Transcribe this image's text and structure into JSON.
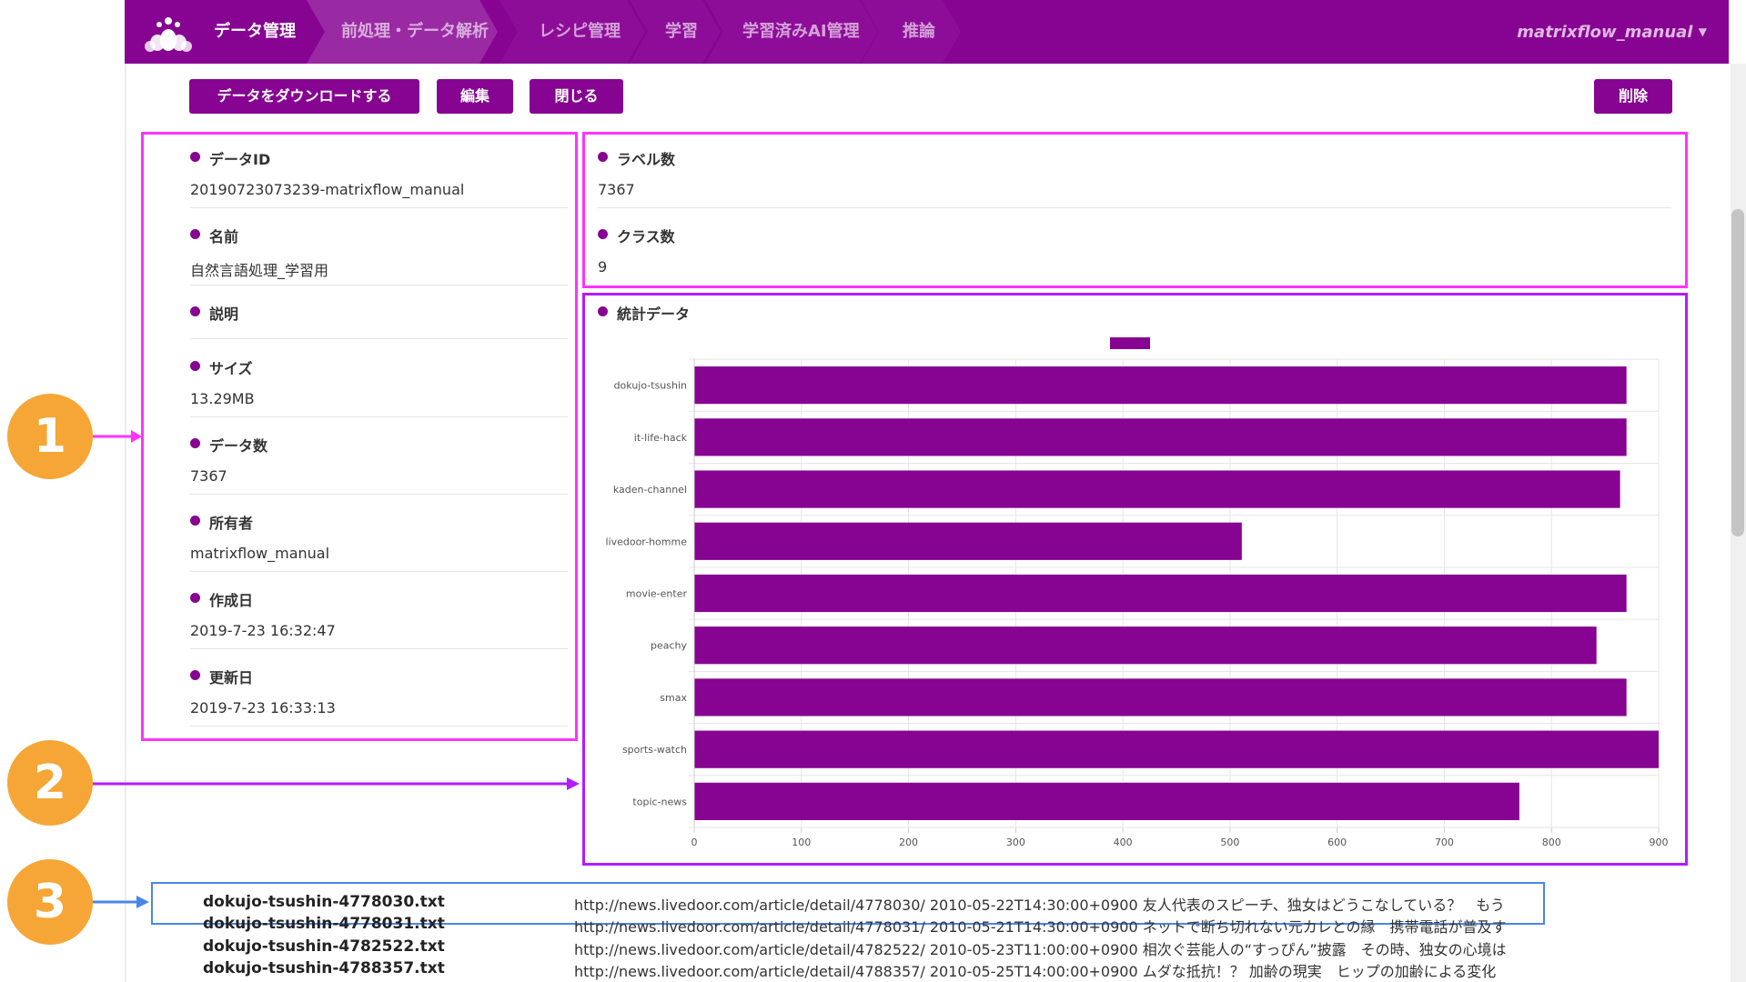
{
  "colors": {
    "brand": "#860491",
    "frame_magenta": "#ff33ff",
    "frame_violet": "#b31bff",
    "frame_blue": "#4a86e8",
    "badge": "#f6a636"
  },
  "logo": {
    "icon": "lotus-logo-icon"
  },
  "breadcrumbs": [
    "データ管理",
    "前処理・データ解析",
    "レシピ管理",
    "学習",
    "学習済みAI管理",
    "推論"
  ],
  "user": {
    "name": "matrixflow_manual"
  },
  "actions": {
    "download": "データをダウンロードする",
    "edit": "編集",
    "close": "閉じる",
    "delete": "削除"
  },
  "info": {
    "data_id": {
      "label": "データID",
      "value": "20190723073239-matrixflow_manual"
    },
    "name": {
      "label": "名前",
      "value": "自然言語処理_学習用"
    },
    "description": {
      "label": "説明",
      "value": ""
    },
    "size": {
      "label": "サイズ",
      "value": "13.29MB"
    },
    "count": {
      "label": "データ数",
      "value": "7367"
    },
    "owner": {
      "label": "所有者",
      "value": "matrixflow_manual"
    },
    "created": {
      "label": "作成日",
      "value": "2019-7-23 16:32:47"
    },
    "updated": {
      "label": "更新日",
      "value": "2019-7-23 16:33:13"
    }
  },
  "summary": {
    "labels": {
      "label": "ラベル数",
      "value": "7367"
    },
    "classes": {
      "label": "クラス数",
      "value": "9"
    }
  },
  "stats": {
    "label": "統計データ"
  },
  "chart_data": {
    "type": "bar",
    "orientation": "horizontal",
    "categories": [
      "dokujo-tsushin",
      "it-life-hack",
      "kaden-channel",
      "livedoor-homme",
      "movie-enter",
      "peachy",
      "smax",
      "sports-watch",
      "topic-news"
    ],
    "values": [
      870,
      870,
      864,
      511,
      870,
      842,
      870,
      900,
      770
    ],
    "xlim": [
      0,
      900
    ],
    "xticks": [
      "0",
      "100",
      "200",
      "300",
      "400",
      "500",
      "600",
      "700",
      "800",
      "900"
    ],
    "grid": true,
    "legend": "top-center",
    "color": "#860491"
  },
  "annotations": [
    "1",
    "2",
    "3"
  ],
  "files": [
    {
      "name": "dokujo-tsushin-4778030.txt",
      "text": "http://news.livedoor.com/article/detail/4778030/ 2010-05-22T14:30:00+0900 友人代表のスピーチ、独女はどうこなしている？　もう"
    },
    {
      "name": "dokujo-tsushin-4778031.txt",
      "text": "http://news.livedoor.com/article/detail/4778031/ 2010-05-21T14:30:00+0900 ネットで断ち切れない元カレとの縁　携帯電話が普及す"
    },
    {
      "name": "dokujo-tsushin-4782522.txt",
      "text": "http://news.livedoor.com/article/detail/4782522/ 2010-05-23T11:00:00+0900 相次ぐ芸能人の“すっぴん”披露　その時、独女の心境は"
    },
    {
      "name": "dokujo-tsushin-4788357.txt",
      "text": "http://news.livedoor.com/article/detail/4788357/ 2010-05-25T14:00:00+0900 ムダな抵抗！？ 加齢の現実　ヒップの加齢による変化"
    }
  ]
}
